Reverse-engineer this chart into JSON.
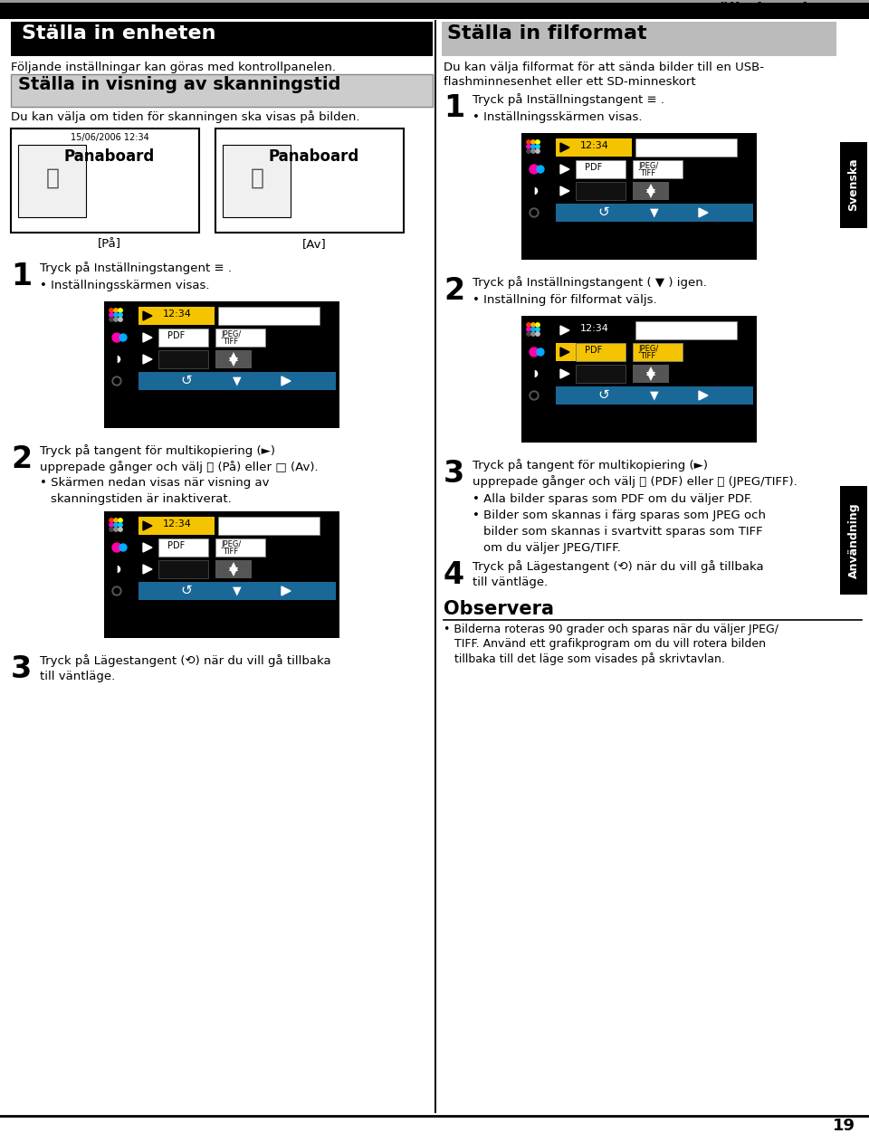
{
  "page_bg": "#ffffff",
  "header_title": "Ställa in enheten",
  "left_section_header": "Ställa in enheten",
  "left_subtitle": "Följande inställningar kan göras med kontrollpanelen.",
  "left_subsection_header": "Ställa in visning av skanningstid",
  "left_subsection_desc": "Du kan välja om tiden för skanningen ska visas på bilden.",
  "panaboard_label_on": "[På]",
  "panaboard_label_off": "[Av]",
  "panaboard_date": "15/06/2006 12:34",
  "panaboard_text": "Panaboard",
  "right_section_header": "Ställa in filformat",
  "right_desc1": "Du kan välja filformat för att sända bilder till en USB-",
  "right_desc2": "flashminnesenhet eller ett SD-minneskort",
  "observe_title": "Observera",
  "observe_bullet": "Bilderna roteras 90 grader och sparas när du väljer JPEG/",
  "observe_line2": "TIFF. Använd ett grafikprogram om du vill rotera bilden",
  "observe_line3": "tillbaka till det läge som visades på skrivtavlan.",
  "svenska_label": "Svenska",
  "anvandning_label": "Användning",
  "page_number": "19",
  "yellow_color": "#f5c400",
  "blue_color": "#1a6898",
  "screen_bg": "#000000"
}
